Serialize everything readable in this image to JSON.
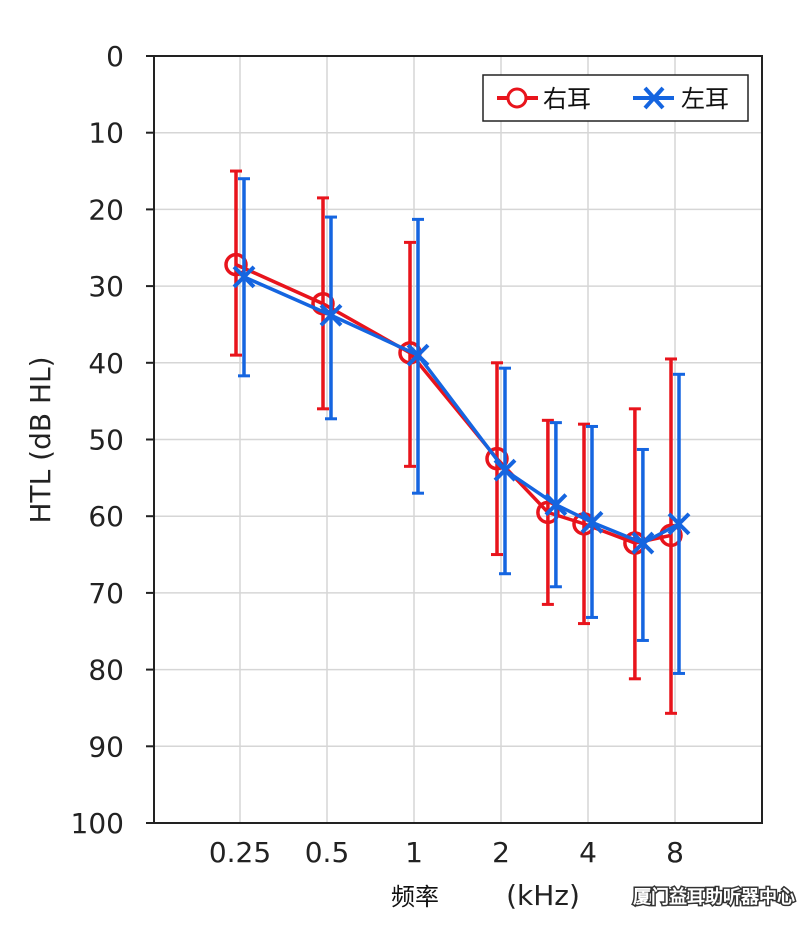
{
  "chart_data": {
    "type": "line",
    "categories": [
      "0.25",
      "0.5",
      "1",
      "2",
      "3",
      "4",
      "6",
      "8"
    ],
    "x_tick_labels": [
      "0.25",
      "0.5",
      "1",
      "2",
      "4",
      "8"
    ],
    "ylabel": "HTL (dB HL)",
    "xlabel_name": "频率",
    "xlabel_unit": "(kHz)",
    "ylim": [
      0,
      100
    ],
    "y_inverted": true,
    "y_ticks": [
      0,
      10,
      20,
      30,
      40,
      50,
      60,
      70,
      80,
      90,
      100
    ],
    "grid": true,
    "legend_position": "top-right",
    "series": [
      {
        "name": "右耳",
        "color": "#e8141c",
        "marker": "circle",
        "values": [
          27.2,
          32.3,
          38.7,
          52.5,
          59.5,
          61.0,
          63.5,
          62.5
        ],
        "error_low": [
          15.0,
          18.5,
          24.3,
          40.0,
          47.5,
          48.0,
          46.0,
          39.5
        ],
        "error_high": [
          39.0,
          46.0,
          53.5,
          65.0,
          71.5,
          74.0,
          81.2,
          85.7
        ]
      },
      {
        "name": "左耳",
        "color": "#1565e0",
        "marker": "x",
        "values": [
          28.8,
          33.8,
          39.0,
          54.0,
          58.5,
          60.8,
          63.5,
          61.0
        ],
        "error_low": [
          16.0,
          21.0,
          21.3,
          40.7,
          47.8,
          48.3,
          51.3,
          41.5
        ],
        "error_high": [
          41.7,
          47.3,
          57.0,
          67.5,
          69.2,
          73.2,
          76.2,
          80.5
        ]
      }
    ]
  },
  "watermark": "厦门益耳助听器中心"
}
